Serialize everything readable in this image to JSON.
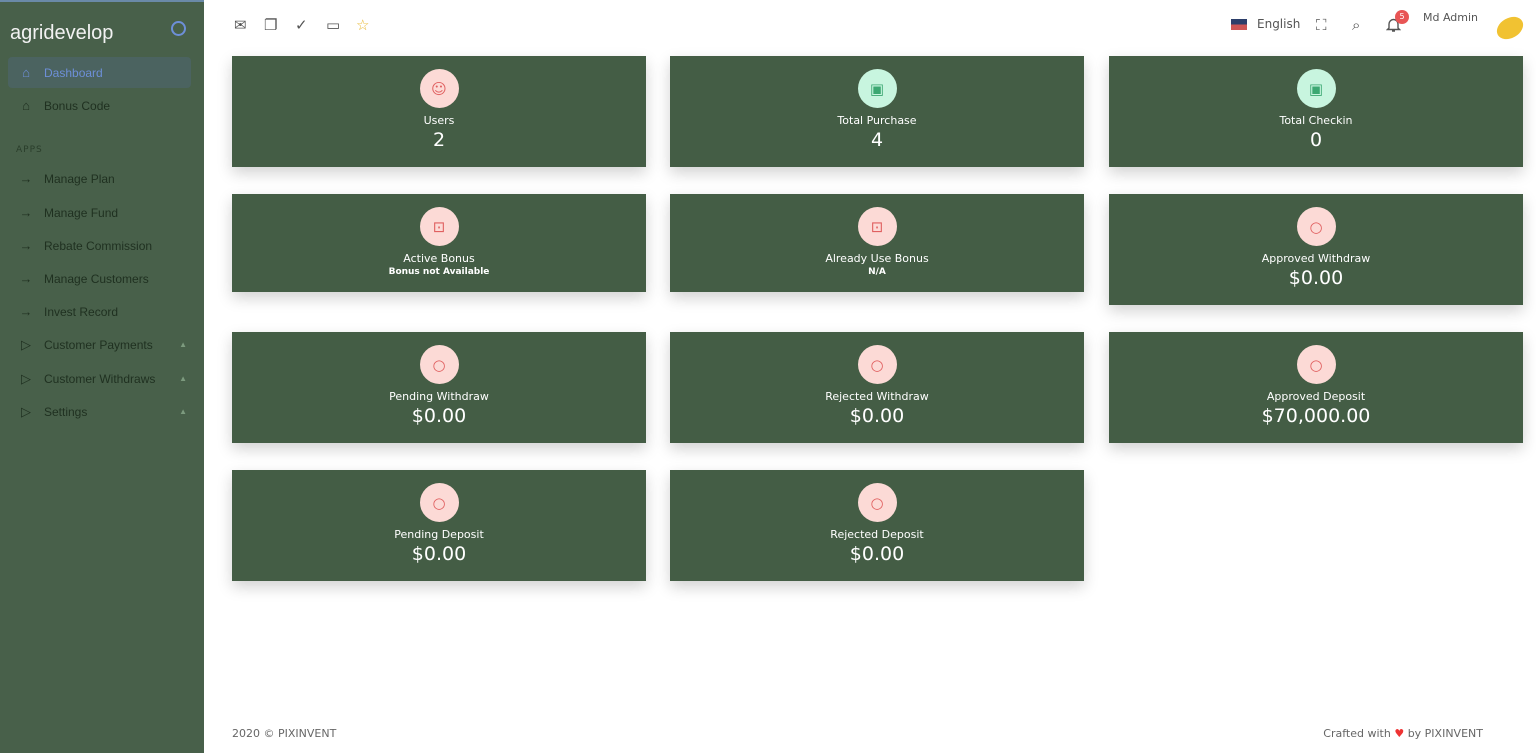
{
  "sidebar": {
    "brand": "agridevelop",
    "section": "APPS",
    "items": [
      {
        "label": "Dashboard",
        "icon": "home-icon"
      },
      {
        "label": "Bonus Code",
        "icon": "home-icon"
      },
      {
        "label": "Manage Plan",
        "icon": "arrow-right-icon"
      },
      {
        "label": "Manage Fund",
        "icon": "arrow-right-icon"
      },
      {
        "label": "Rebate Commission",
        "icon": "arrow-right-icon"
      },
      {
        "label": "Manage Customers",
        "icon": "arrow-right-icon"
      },
      {
        "label": "Invest Record",
        "icon": "arrow-right-icon"
      },
      {
        "label": "Customer Payments",
        "icon": "play-icon"
      },
      {
        "label": "Customer Withdraws",
        "icon": "play-icon"
      },
      {
        "label": "Settings",
        "icon": "play-icon"
      }
    ]
  },
  "topbar": {
    "language": "English",
    "notifications": "5",
    "user": "Md Admin"
  },
  "cards": [
    {
      "label": "Users",
      "value": "2"
    },
    {
      "label": "Total Purchase",
      "value": "4"
    },
    {
      "label": "Total Checkin",
      "value": "0"
    },
    {
      "label": "Active Bonus",
      "value": "Bonus not Available"
    },
    {
      "label": "Already Use Bonus",
      "value": "N/A"
    },
    {
      "label": "Approved Withdraw",
      "value": "$0.00"
    },
    {
      "label": "Pending Withdraw",
      "value": "$0.00"
    },
    {
      "label": "Rejected Withdraw",
      "value": "$0.00"
    },
    {
      "label": "Approved Deposit",
      "value": "$70,000.00"
    },
    {
      "label": "Pending Deposit",
      "value": "$0.00"
    },
    {
      "label": "Rejected Deposit",
      "value": "$0.00"
    }
  ],
  "footer": {
    "left": "2020 © PIXINVENT",
    "right_prefix": "Crafted with",
    "right_suffix": "by PIXINVENT"
  },
  "colors": {
    "sidebar": "#48604a",
    "card": "#445d45",
    "accent": "#6d8fd8"
  }
}
